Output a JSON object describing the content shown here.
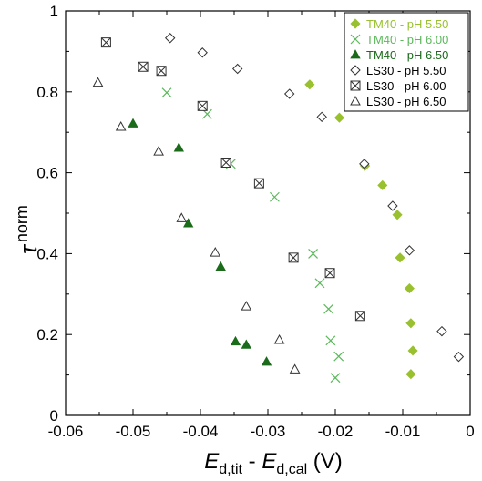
{
  "colors": {
    "tm40_55": "#99c12f",
    "tm40_60": "#5cb85c",
    "tm40_65": "#1a6b1a",
    "ls30": "#333333"
  },
  "chart_data": {
    "type": "scatter",
    "xlim": [
      -0.06,
      0
    ],
    "ylim": [
      0,
      1
    ],
    "xticks": [
      -0.06,
      -0.05,
      -0.04,
      -0.03,
      -0.02,
      -0.01,
      0
    ],
    "xtick_labels": [
      "-0.06",
      "-0.05",
      "-0.04",
      "-0.03",
      "-0.02",
      "-0.01",
      "0"
    ],
    "yticks": [
      0,
      0.2,
      0.4,
      0.6,
      0.8,
      1
    ],
    "ytick_labels": [
      "0",
      "0.2",
      "0.4",
      "0.6",
      "0.8",
      "1"
    ],
    "xlabel": {
      "e1": "E",
      "s1": "d,tit",
      "mid": " - ",
      "e2": "E",
      "s2": "d,cal",
      "unit": " (V)"
    },
    "ylabel": {
      "main": "τ",
      "sup": "norm"
    },
    "grid": false,
    "legend_position": "top-right",
    "series": [
      {
        "name": "TM40 - pH 5.50",
        "marker": "diamond-filled",
        "color": "#99c12f",
        "x": [
          -0.0238,
          -0.0194,
          -0.0156,
          -0.013,
          -0.0108,
          -0.0104,
          -0.009,
          -0.0088,
          -0.0085,
          -0.0088
        ],
        "y": [
          0.818,
          0.736,
          0.617,
          0.569,
          0.496,
          0.39,
          0.314,
          0.228,
          0.16,
          0.102
        ]
      },
      {
        "name": "TM40 - pH 6.00",
        "marker": "x",
        "color": "#5cb85c",
        "x": [
          -0.045,
          -0.039,
          -0.0355,
          -0.029,
          -0.0233,
          -0.0223,
          -0.021,
          -0.0207,
          -0.0195,
          -0.02
        ],
        "y": [
          0.798,
          0.745,
          0.622,
          0.54,
          0.4,
          0.327,
          0.263,
          0.185,
          0.146,
          0.093
        ]
      },
      {
        "name": "TM40 - pH 6.50",
        "marker": "triangle-filled",
        "color": "#1a6b1a",
        "x": [
          -0.05,
          -0.0432,
          -0.0418,
          -0.037,
          -0.0348,
          -0.0332,
          -0.0302
        ],
        "y": [
          0.722,
          0.662,
          0.475,
          0.368,
          0.183,
          0.175,
          0.133
        ]
      },
      {
        "name": "LS30 - pH 5.50",
        "marker": "diamond-open",
        "color": "#333333",
        "x": [
          -0.0445,
          -0.0397,
          -0.0345,
          -0.0268,
          -0.022,
          -0.0157,
          -0.0115,
          -0.009,
          -0.0042,
          -0.0017
        ],
        "y": [
          0.933,
          0.897,
          0.857,
          0.795,
          0.738,
          0.622,
          0.518,
          0.408,
          0.208,
          0.145
        ]
      },
      {
        "name": "LS30 - pH 6.00",
        "marker": "square-x",
        "color": "#333333",
        "x": [
          -0.054,
          -0.0485,
          -0.0458,
          -0.0397,
          -0.0362,
          -0.0313,
          -0.0262,
          -0.0208,
          -0.0163
        ],
        "y": [
          0.922,
          0.862,
          0.852,
          0.765,
          0.625,
          0.574,
          0.39,
          0.352,
          0.246
        ]
      },
      {
        "name": "LS30 - pH 6.50",
        "marker": "triangle-open",
        "color": "#333333",
        "x": [
          -0.0552,
          -0.0518,
          -0.0462,
          -0.0428,
          -0.0378,
          -0.0332,
          -0.0283,
          -0.026
        ],
        "y": [
          0.823,
          0.714,
          0.653,
          0.488,
          0.403,
          0.27,
          0.187,
          0.114
        ]
      }
    ]
  }
}
